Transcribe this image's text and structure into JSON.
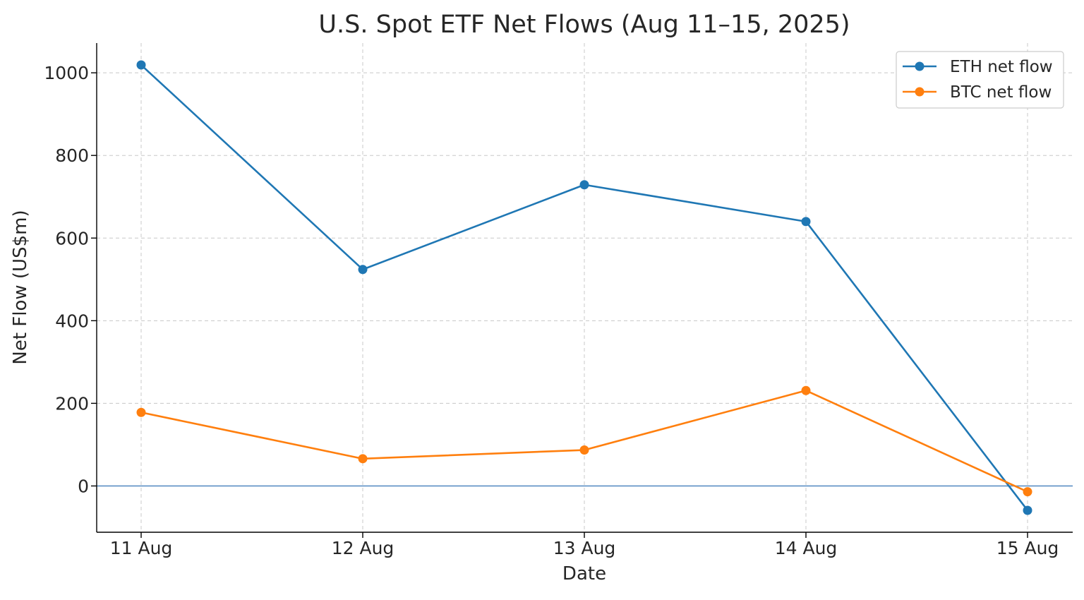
{
  "chart_data": {
    "type": "line",
    "title": "U.S. Spot ETF Net Flows (Aug 11–15, 2025)",
    "xlabel": "Date",
    "ylabel": "Net Flow (US$m)",
    "categories": [
      "11 Aug",
      "12 Aug",
      "13 Aug",
      "14 Aug",
      "15 Aug"
    ],
    "ylim": [
      -112,
      1072
    ],
    "yticks": [
      0,
      200,
      400,
      600,
      800,
      1000
    ],
    "grid": true,
    "zero_line": true,
    "legend_position": "top-right",
    "series": [
      {
        "name": "ETH net flow",
        "color": "#1f77b4",
        "values": [
          1019,
          524,
          729,
          640,
          -59
        ]
      },
      {
        "name": "BTC net flow",
        "color": "#ff7f0e",
        "values": [
          178,
          66,
          87,
          231,
          -14
        ]
      }
    ]
  }
}
